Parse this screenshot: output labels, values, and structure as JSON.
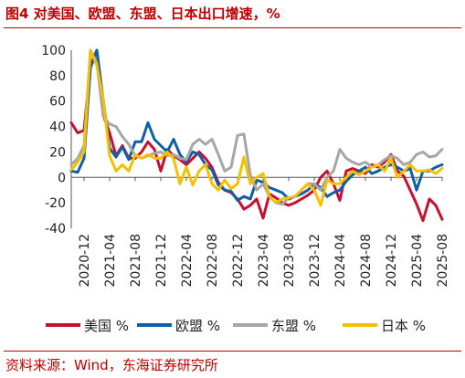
{
  "header": {
    "title": "图4  对美国、欧盟、东盟、日本出口增速，%"
  },
  "footer": {
    "source": "资料来源：Wind，东海证券研究所"
  },
  "chart_data": {
    "type": "line",
    "title": "图4  对美国、欧盟、东盟、日本出口增速，%",
    "xlabel": "",
    "ylabel": "",
    "ylim": [
      -40,
      100
    ],
    "yticks": [
      -40,
      -20,
      0,
      20,
      40,
      60,
      80,
      100
    ],
    "x_ticks": [
      "2020-12",
      "2021-04",
      "2021-08",
      "2021-12",
      "2022-04",
      "2022-08",
      "2022-12",
      "2023-04",
      "2023-08",
      "2023-12",
      "2024-04",
      "2024-08",
      "2024-12",
      "2025-04",
      "2025-08"
    ],
    "x": [
      "2020-10",
      "2020-11",
      "2020-12",
      "2021-01",
      "2021-02",
      "2021-03",
      "2021-04",
      "2021-05",
      "2021-06",
      "2021-07",
      "2021-08",
      "2021-09",
      "2021-10",
      "2021-11",
      "2021-12",
      "2022-01",
      "2022-02",
      "2022-03",
      "2022-04",
      "2022-05",
      "2022-06",
      "2022-07",
      "2022-08",
      "2022-09",
      "2022-10",
      "2022-11",
      "2022-12",
      "2023-01",
      "2023-02",
      "2023-03",
      "2023-04",
      "2023-05",
      "2023-06",
      "2023-07",
      "2023-08",
      "2023-09",
      "2023-10",
      "2023-11",
      "2023-12",
      "2024-01",
      "2024-02",
      "2024-03",
      "2024-04",
      "2024-05",
      "2024-06",
      "2024-07",
      "2024-08",
      "2024-09",
      "2024-10",
      "2024-11",
      "2024-12",
      "2025-01",
      "2025-02",
      "2025-03",
      "2025-04",
      "2025-05",
      "2025-06",
      "2025-07",
      "2025-08"
    ],
    "grid": false,
    "legend": "bottom",
    "series": [
      {
        "name": "美国 %",
        "color": "#c8102e",
        "values": [
          43,
          35,
          37,
          88,
          100,
          49,
          35,
          17,
          25,
          15,
          15,
          20,
          28,
          22,
          5,
          22,
          17,
          14,
          10,
          15,
          20,
          15,
          8,
          -4,
          -10,
          -12,
          -17,
          -25,
          -22,
          -17,
          -32,
          -13,
          -16,
          -20,
          -22,
          -20,
          -17,
          -14,
          -10,
          0,
          5,
          -5,
          -18,
          5,
          7,
          5,
          3,
          10,
          8,
          12,
          18,
          5,
          1,
          -10,
          -21,
          -34,
          -17,
          -22,
          -33
        ]
      },
      {
        "name": "欧盟 %",
        "color": "#0f5fa8",
        "values": [
          5,
          4,
          15,
          86,
          100,
          61,
          23,
          16,
          24,
          14,
          28,
          28,
          43,
          30,
          25,
          20,
          30,
          18,
          12,
          20,
          18,
          10,
          6,
          -6,
          -10,
          -11,
          -18,
          -15,
          -17,
          -2,
          -4,
          -8,
          -10,
          -12,
          -17,
          -15,
          -13,
          -10,
          -5,
          -8,
          -15,
          -12,
          -10,
          -3,
          2,
          5,
          8,
          3,
          5,
          8,
          10,
          8,
          5,
          7,
          -10,
          5,
          5,
          8,
          10
        ]
      },
      {
        "name": "东盟 %",
        "color": "#a6a6a6",
        "values": [
          10,
          15,
          25,
          100,
          90,
          48,
          42,
          40,
          32,
          26,
          17,
          15,
          17,
          19,
          20,
          17,
          18,
          15,
          14,
          26,
          30,
          26,
          30,
          18,
          5,
          8,
          33,
          34,
          2,
          -10,
          -5,
          -15,
          -20,
          -21,
          -16,
          -15,
          -10,
          -5,
          -5,
          -10,
          0,
          5,
          22,
          15,
          12,
          10,
          12,
          8,
          10,
          14,
          17,
          15,
          10,
          12,
          18,
          20,
          16,
          17,
          22
        ]
      },
      {
        "name": "日本 %",
        "color": "#f5c000",
        "values": [
          6,
          12,
          20,
          100,
          88,
          62,
          17,
          5,
          10,
          5,
          18,
          15,
          18,
          15,
          15,
          20,
          15,
          -5,
          8,
          -6,
          5,
          10,
          -5,
          -10,
          -2,
          -9,
          -5,
          16,
          -5,
          0,
          3,
          -15,
          -20,
          -17,
          -16,
          -15,
          -10,
          -5,
          -10,
          -22,
          -2,
          -5,
          -5,
          0,
          5,
          2,
          5,
          8,
          10,
          5,
          15,
          0,
          5,
          10,
          5,
          5,
          6,
          3,
          7
        ]
      }
    ]
  }
}
